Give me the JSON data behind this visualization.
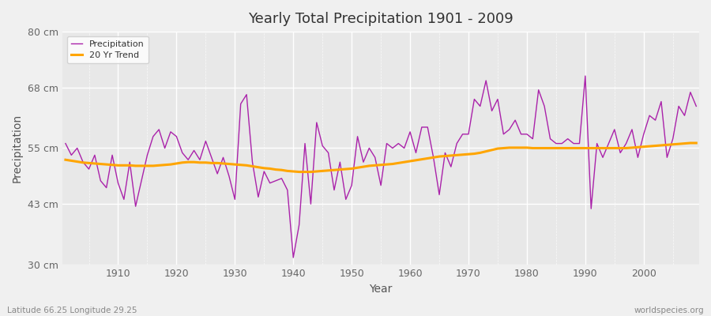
{
  "title": "Yearly Total Precipitation 1901 - 2009",
  "xlabel": "Year",
  "ylabel": "Precipitation",
  "bottom_left_label": "Latitude 66.25 Longitude 29.25",
  "bottom_right_label": "worldspecies.org",
  "ylim": [
    30,
    80
  ],
  "yticks": [
    30,
    43,
    55,
    68,
    80
  ],
  "ytick_labels": [
    "30 cm",
    "43 cm",
    "55 cm",
    "68 cm",
    "80 cm"
  ],
  "xlim": [
    1901,
    2009
  ],
  "xticks": [
    1910,
    1920,
    1930,
    1940,
    1950,
    1960,
    1970,
    1980,
    1990,
    2000
  ],
  "precip_color": "#aa22aa",
  "trend_color": "#FFA500",
  "bg_color": "#E8E8E8",
  "fig_bg_color": "#F0F0F0",
  "legend_precip": "Precipitation",
  "legend_trend": "20 Yr Trend",
  "years": [
    1901,
    1902,
    1903,
    1904,
    1905,
    1906,
    1907,
    1908,
    1909,
    1910,
    1911,
    1912,
    1913,
    1914,
    1915,
    1916,
    1917,
    1918,
    1919,
    1920,
    1921,
    1922,
    1923,
    1924,
    1925,
    1926,
    1927,
    1928,
    1929,
    1930,
    1931,
    1932,
    1933,
    1934,
    1935,
    1936,
    1937,
    1938,
    1939,
    1940,
    1941,
    1942,
    1943,
    1944,
    1945,
    1946,
    1947,
    1948,
    1949,
    1950,
    1951,
    1952,
    1953,
    1954,
    1955,
    1956,
    1957,
    1958,
    1959,
    1960,
    1961,
    1962,
    1963,
    1964,
    1965,
    1966,
    1967,
    1968,
    1969,
    1970,
    1971,
    1972,
    1973,
    1974,
    1975,
    1976,
    1977,
    1978,
    1979,
    1980,
    1981,
    1982,
    1983,
    1984,
    1985,
    1986,
    1987,
    1988,
    1989,
    1990,
    1991,
    1992,
    1993,
    1994,
    1995,
    1996,
    1997,
    1998,
    1999,
    2000,
    2001,
    2002,
    2003,
    2004,
    2005,
    2006,
    2007,
    2008,
    2009
  ],
  "precip": [
    56.0,
    53.5,
    55.0,
    52.0,
    50.5,
    53.5,
    48.0,
    46.5,
    53.5,
    47.5,
    44.0,
    52.0,
    42.5,
    48.0,
    53.5,
    57.5,
    59.0,
    55.0,
    58.5,
    57.5,
    54.0,
    52.5,
    54.5,
    52.5,
    56.5,
    53.0,
    49.5,
    53.0,
    49.0,
    44.0,
    64.5,
    66.5,
    52.0,
    44.5,
    50.0,
    47.5,
    48.0,
    48.5,
    46.0,
    31.5,
    38.5,
    56.0,
    43.0,
    60.5,
    55.5,
    54.0,
    46.0,
    52.0,
    44.0,
    47.0,
    57.5,
    52.0,
    55.0,
    53.0,
    47.0,
    56.0,
    55.0,
    56.0,
    55.0,
    58.5,
    54.0,
    59.5,
    59.5,
    53.0,
    45.0,
    54.0,
    51.0,
    56.0,
    58.0,
    58.0,
    65.5,
    64.0,
    69.5,
    63.0,
    65.5,
    58.0,
    59.0,
    61.0,
    58.0,
    58.0,
    57.0,
    67.5,
    64.0,
    57.0,
    56.0,
    56.0,
    57.0,
    56.0,
    56.0,
    70.5,
    42.0,
    56.0,
    53.0,
    56.0,
    59.0,
    54.0,
    56.0,
    59.0,
    53.0,
    58.0,
    62.0,
    61.0,
    65.0,
    53.0,
    57.0,
    64.0,
    62.0,
    67.0,
    64.0
  ],
  "trend": [
    52.5,
    52.3,
    52.1,
    51.9,
    51.8,
    51.7,
    51.6,
    51.5,
    51.4,
    51.3,
    51.3,
    51.3,
    51.2,
    51.2,
    51.2,
    51.2,
    51.3,
    51.4,
    51.5,
    51.7,
    51.9,
    52.0,
    52.0,
    51.9,
    51.9,
    51.8,
    51.8,
    51.7,
    51.6,
    51.5,
    51.4,
    51.3,
    51.1,
    50.9,
    50.7,
    50.6,
    50.4,
    50.3,
    50.1,
    50.0,
    49.9,
    49.9,
    49.9,
    50.0,
    50.1,
    50.2,
    50.3,
    50.4,
    50.5,
    50.6,
    50.8,
    51.0,
    51.2,
    51.3,
    51.4,
    51.5,
    51.6,
    51.8,
    52.0,
    52.2,
    52.4,
    52.6,
    52.8,
    53.0,
    53.2,
    53.3,
    53.4,
    53.5,
    53.6,
    53.7,
    53.8,
    54.0,
    54.3,
    54.6,
    54.9,
    55.0,
    55.1,
    55.1,
    55.1,
    55.1,
    55.0,
    55.0,
    55.0,
    55.0,
    55.0,
    55.0,
    55.0,
    55.0,
    55.0,
    55.0,
    55.0,
    55.0,
    55.0,
    55.0,
    55.0,
    55.0,
    55.0,
    55.1,
    55.2,
    55.3,
    55.4,
    55.5,
    55.6,
    55.7,
    55.8,
    55.9,
    56.0,
    56.1,
    56.1
  ]
}
